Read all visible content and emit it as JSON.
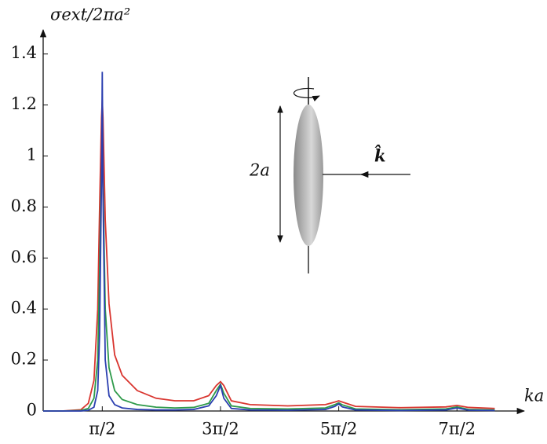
{
  "chart_data": {
    "type": "line",
    "ylabel": "σext/2πa²",
    "xlabel": "ka",
    "annotations": [
      "2a",
      "k̂"
    ],
    "xlim": [
      0,
      12.7
    ],
    "ylim": [
      0,
      1.49
    ],
    "xticks": [
      {
        "value": 1.5708,
        "label": "π/2"
      },
      {
        "value": 4.7124,
        "label": "3π/2"
      },
      {
        "value": 7.854,
        "label": "5π/2"
      },
      {
        "value": 10.9956,
        "label": "7π/2"
      }
    ],
    "yticks": [
      0,
      0.2,
      0.4,
      0.6,
      0.8,
      1,
      1.2,
      1.4
    ],
    "x": [
      0,
      0.5,
      1.0,
      1.2,
      1.35,
      1.45,
      1.5,
      1.55,
      1.5708,
      1.59,
      1.65,
      1.75,
      1.9,
      2.1,
      2.5,
      3.0,
      3.5,
      4.0,
      4.4,
      4.6,
      4.7124,
      4.8,
      5.0,
      5.5,
      6.5,
      7.5,
      7.75,
      7.854,
      7.95,
      8.3,
      9.5,
      10.7,
      10.9956,
      11.3,
      12.0
    ],
    "series": [
      {
        "color": "#d9352f",
        "values": [
          0,
          0,
          0.005,
          0.03,
          0.12,
          0.4,
          0.8,
          1.15,
          1.22,
          1.15,
          0.75,
          0.42,
          0.22,
          0.14,
          0.08,
          0.05,
          0.04,
          0.04,
          0.06,
          0.1,
          0.115,
          0.1,
          0.04,
          0.025,
          0.02,
          0.025,
          0.035,
          0.04,
          0.035,
          0.018,
          0.013,
          0.016,
          0.022,
          0.014,
          0.01
        ]
      },
      {
        "color": "#2e9a4a",
        "values": [
          0,
          0,
          0.002,
          0.01,
          0.05,
          0.2,
          0.55,
          0.95,
          1.05,
          0.9,
          0.4,
          0.17,
          0.08,
          0.045,
          0.025,
          0.015,
          0.012,
          0.014,
          0.03,
          0.08,
          0.105,
          0.07,
          0.02,
          0.01,
          0.008,
          0.012,
          0.025,
          0.032,
          0.024,
          0.008,
          0.005,
          0.008,
          0.016,
          0.006,
          0.004
        ]
      },
      {
        "color": "#2b3fb0",
        "values": [
          0,
          0,
          0,
          0.003,
          0.015,
          0.08,
          0.3,
          0.9,
          1.33,
          0.85,
          0.2,
          0.06,
          0.025,
          0.012,
          0.006,
          0.004,
          0.004,
          0.006,
          0.02,
          0.06,
          0.1,
          0.05,
          0.01,
          0.004,
          0.003,
          0.006,
          0.018,
          0.028,
          0.016,
          0.004,
          0.002,
          0.004,
          0.012,
          0.003,
          0.002
        ]
      }
    ]
  }
}
